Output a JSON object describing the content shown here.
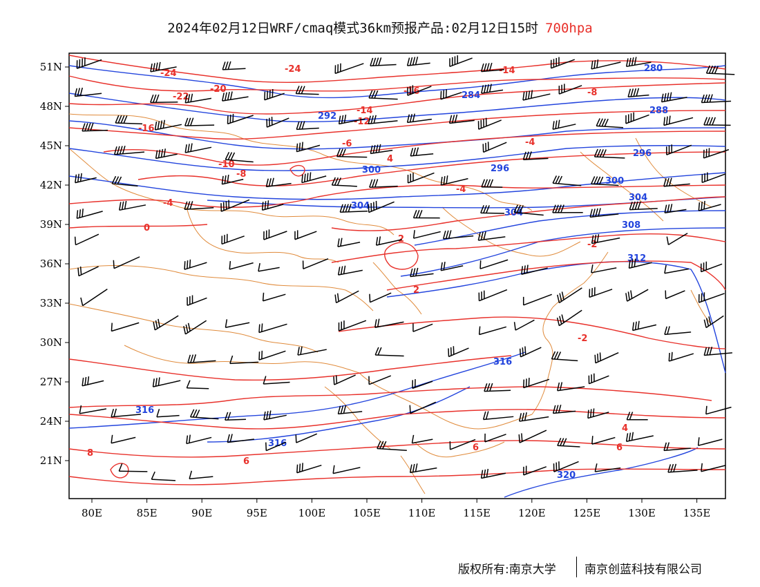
{
  "title": {
    "text": "2024年02月12日WRF/cmaq模式36km预报产品:02月12日15时",
    "level": "700hpa",
    "level_color": "#e8302a"
  },
  "axes": {
    "lon_ticks": [
      "80E",
      "85E",
      "90E",
      "95E",
      "100E",
      "105E",
      "110E",
      "115E",
      "120E",
      "125E",
      "130E",
      "135E"
    ],
    "lat_ticks": [
      "51N",
      "48N",
      "45N",
      "42N",
      "39N",
      "36N",
      "33N",
      "30N",
      "27N",
      "24N",
      "21N"
    ]
  },
  "colors": {
    "height_contour": "#2244dd",
    "temperature_contour": "#e8302a",
    "borders": "#e08a3a",
    "wind_barbs": "#000000"
  },
  "layers": {
    "temperature_labels": [
      "-24",
      "-24",
      "-20",
      "-16",
      "-14",
      "-14",
      "-12",
      "-8",
      "-6",
      "-4",
      "-4",
      "-4",
      "0",
      "2",
      "-2",
      "2",
      "4",
      "4",
      "6",
      "6",
      "6",
      "8",
      "-10",
      "-22",
      "-16",
      "-8",
      "-2"
    ],
    "height_labels": [
      "280",
      "284",
      "288",
      "292",
      "296",
      "300",
      "304",
      "304",
      "304",
      "308",
      "312",
      "316",
      "316",
      "316",
      "320",
      "296",
      "300"
    ]
  },
  "footer": {
    "left": "版权所有:南京大学",
    "right": "南京创蓝科技有限公司"
  }
}
